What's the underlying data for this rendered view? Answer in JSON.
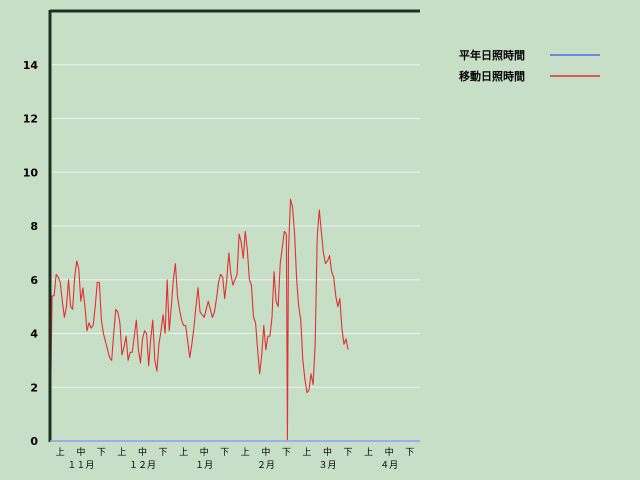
{
  "chart_data": {
    "type": "line",
    "ylim": [
      0,
      16
    ],
    "yticks": [
      0,
      2,
      4,
      6,
      8,
      10,
      12,
      14
    ],
    "x_range": [
      0,
      180
    ],
    "decade_labels": [
      "上",
      "中",
      "下",
      "上",
      "中",
      "下",
      "上",
      "中",
      "下",
      "上",
      "中",
      "下",
      "上",
      "中",
      "下",
      "上",
      "中",
      "下"
    ],
    "month_labels": [
      "１１月",
      "１２月",
      "１月",
      "２月",
      "３月",
      "４月"
    ],
    "grid": true,
    "legend_position": "right",
    "series": [
      {
        "name": "平年日照時間",
        "color": "#4a6cf0",
        "points": [
          [
            0,
            0
          ],
          [
            180,
            0
          ]
        ]
      },
      {
        "name": "移動日照時間",
        "color": "#e03030",
        "points": [
          [
            0,
            0
          ],
          [
            1,
            5.4
          ],
          [
            2,
            5.4
          ],
          [
            3,
            6.2
          ],
          [
            4,
            6.1
          ],
          [
            5,
            5.9
          ],
          [
            6,
            5.2
          ],
          [
            7,
            4.6
          ],
          [
            8,
            5.0
          ],
          [
            9,
            6.0
          ],
          [
            10,
            5.0
          ],
          [
            11,
            4.9
          ],
          [
            12,
            6.1
          ],
          [
            13,
            6.7
          ],
          [
            14,
            6.4
          ],
          [
            15,
            5.2
          ],
          [
            16,
            5.7
          ],
          [
            17,
            5.0
          ],
          [
            18,
            4.1
          ],
          [
            19,
            4.4
          ],
          [
            20,
            4.2
          ],
          [
            21,
            4.3
          ],
          [
            22,
            5.0
          ],
          [
            23,
            5.9
          ],
          [
            24,
            5.9
          ],
          [
            25,
            4.5
          ],
          [
            26,
            4.0
          ],
          [
            27,
            3.7
          ],
          [
            28,
            3.4
          ],
          [
            29,
            3.1
          ],
          [
            30,
            3.0
          ],
          [
            31,
            4.0
          ],
          [
            32,
            4.9
          ],
          [
            33,
            4.8
          ],
          [
            34,
            4.4
          ],
          [
            35,
            3.2
          ],
          [
            36,
            3.5
          ],
          [
            37,
            3.9
          ],
          [
            38,
            3.0
          ],
          [
            39,
            3.3
          ],
          [
            40,
            3.3
          ],
          [
            41,
            3.9
          ],
          [
            42,
            4.5
          ],
          [
            43,
            3.4
          ],
          [
            44,
            2.9
          ],
          [
            45,
            3.8
          ],
          [
            46,
            4.1
          ],
          [
            47,
            4.0
          ],
          [
            48,
            2.8
          ],
          [
            49,
            3.8
          ],
          [
            50,
            4.5
          ],
          [
            51,
            3.0
          ],
          [
            52,
            2.6
          ],
          [
            53,
            3.6
          ],
          [
            54,
            4.1
          ],
          [
            55,
            4.7
          ],
          [
            56,
            4.0
          ],
          [
            57,
            6.0
          ],
          [
            58,
            4.1
          ],
          [
            59,
            5.0
          ],
          [
            60,
            6.0
          ],
          [
            61,
            6.6
          ],
          [
            62,
            5.4
          ],
          [
            63,
            4.9
          ],
          [
            64,
            4.5
          ],
          [
            65,
            4.3
          ],
          [
            66,
            4.3
          ],
          [
            67,
            3.7
          ],
          [
            68,
            3.1
          ],
          [
            69,
            3.6
          ],
          [
            70,
            4.2
          ],
          [
            71,
            5.0
          ],
          [
            72,
            5.7
          ],
          [
            73,
            4.8
          ],
          [
            74,
            4.7
          ],
          [
            75,
            4.6
          ],
          [
            76,
            4.9
          ],
          [
            77,
            5.2
          ],
          [
            78,
            4.9
          ],
          [
            79,
            4.6
          ],
          [
            80,
            4.8
          ],
          [
            81,
            5.3
          ],
          [
            82,
            5.9
          ],
          [
            83,
            6.2
          ],
          [
            84,
            6.1
          ],
          [
            85,
            5.3
          ],
          [
            86,
            6.0
          ],
          [
            87,
            7.0
          ],
          [
            88,
            6.2
          ],
          [
            89,
            5.8
          ],
          [
            90,
            6.0
          ],
          [
            91,
            6.2
          ],
          [
            92,
            7.7
          ],
          [
            93,
            7.4
          ],
          [
            94,
            6.8
          ],
          [
            95,
            7.8
          ],
          [
            96,
            7.1
          ],
          [
            97,
            6.0
          ],
          [
            98,
            5.8
          ],
          [
            99,
            4.6
          ],
          [
            100,
            4.4
          ],
          [
            101,
            3.4
          ],
          [
            102,
            2.5
          ],
          [
            103,
            3.2
          ],
          [
            104,
            4.3
          ],
          [
            105,
            3.4
          ],
          [
            106,
            3.9
          ],
          [
            107,
            3.9
          ],
          [
            108,
            4.6
          ],
          [
            109,
            6.3
          ],
          [
            110,
            5.2
          ],
          [
            111,
            5.0
          ],
          [
            112,
            6.6
          ],
          [
            113,
            7.2
          ],
          [
            114,
            7.8
          ],
          [
            115,
            7.7
          ],
          [
            115.5,
            0
          ],
          [
            116,
            7.0
          ],
          [
            117,
            9.0
          ],
          [
            118,
            8.7
          ],
          [
            119,
            7.7
          ],
          [
            120,
            6.0
          ],
          [
            121,
            5.0
          ],
          [
            122,
            4.5
          ],
          [
            123,
            3.0
          ],
          [
            124,
            2.3
          ],
          [
            125,
            1.8
          ],
          [
            126,
            1.9
          ],
          [
            127,
            2.5
          ],
          [
            128,
            2.1
          ],
          [
            129,
            3.6
          ],
          [
            130,
            7.6
          ],
          [
            131,
            8.6
          ],
          [
            132,
            7.8
          ],
          [
            133,
            7.0
          ],
          [
            134,
            6.6
          ],
          [
            135,
            6.7
          ],
          [
            136,
            6.9
          ],
          [
            137,
            6.3
          ],
          [
            138,
            6.1
          ],
          [
            139,
            5.4
          ],
          [
            140,
            5.0
          ],
          [
            141,
            5.3
          ],
          [
            142,
            4.2
          ],
          [
            143,
            3.6
          ],
          [
            144,
            3.8
          ],
          [
            145,
            3.4
          ]
        ]
      }
    ]
  }
}
